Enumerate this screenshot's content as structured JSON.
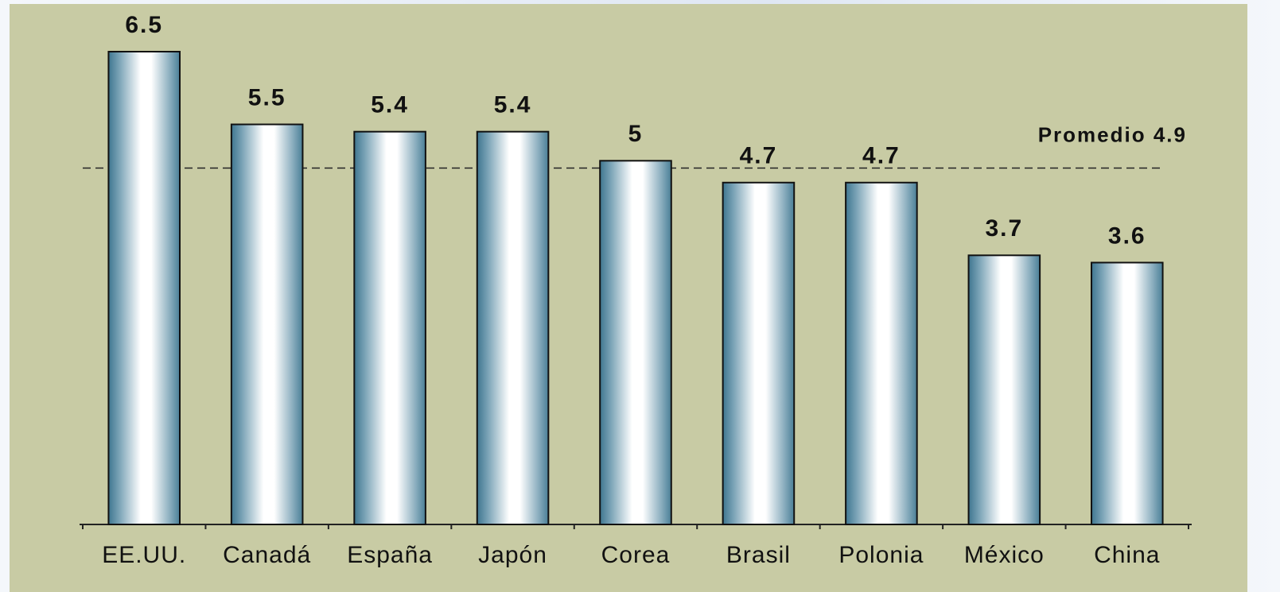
{
  "chart_data": {
    "type": "bar",
    "categories": [
      "EE.UU.",
      "Canadá",
      "España",
      "Japón",
      "Corea",
      "Brasil",
      "Polonia",
      "México",
      "China"
    ],
    "values": [
      6.5,
      5.5,
      5.4,
      5.4,
      5,
      4.7,
      4.7,
      3.7,
      3.6
    ],
    "color": "#4a7f97",
    "ylim": [
      0,
      6.5
    ],
    "reference_line": {
      "label": "Promedio 4.9",
      "value": 4.9
    }
  }
}
